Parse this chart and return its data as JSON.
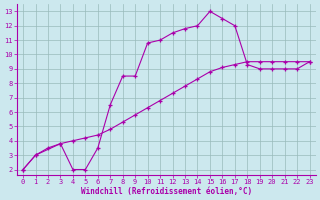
{
  "bg_color": "#cce8ee",
  "line_color": "#aa00aa",
  "xlabel": "Windchill (Refroidissement éolien,°C)",
  "xlim_min": -0.5,
  "xlim_max": 23.5,
  "ylim_min": 1.6,
  "ylim_max": 13.5,
  "xticks": [
    0,
    1,
    2,
    3,
    4,
    5,
    6,
    7,
    8,
    9,
    10,
    11,
    12,
    13,
    14,
    15,
    16,
    17,
    18,
    19,
    20,
    21,
    22,
    23
  ],
  "yticks": [
    2,
    3,
    4,
    5,
    6,
    7,
    8,
    9,
    10,
    11,
    12,
    13
  ],
  "curve1_x": [
    0,
    1,
    3,
    4,
    5,
    6,
    7,
    8,
    9,
    10,
    11,
    12,
    13,
    14,
    15,
    16,
    17,
    18,
    19,
    20,
    21,
    22,
    23
  ],
  "curve1_y": [
    2.0,
    3.0,
    3.8,
    2.0,
    2.0,
    3.5,
    6.5,
    8.5,
    8.5,
    10.8,
    11.0,
    11.5,
    11.8,
    12.0,
    13.0,
    12.5,
    12.0,
    9.3,
    9.0,
    9.0,
    9.0,
    9.0,
    9.5
  ],
  "curve2_x": [
    0,
    1,
    2,
    3,
    4,
    5,
    6,
    7,
    8,
    9,
    10,
    11,
    12,
    13,
    14,
    15,
    16,
    17,
    18,
    19,
    20,
    21,
    22,
    23
  ],
  "curve2_y": [
    2.0,
    3.0,
    3.5,
    3.8,
    4.0,
    4.2,
    4.4,
    4.8,
    5.3,
    5.8,
    6.3,
    6.8,
    7.3,
    7.8,
    8.3,
    8.8,
    9.1,
    9.3,
    9.5,
    9.5,
    9.5,
    9.5,
    9.5,
    9.5
  ],
  "grid_color": "#99bbbb",
  "tick_fontsize": 5,
  "xlabel_fontsize": 5.5,
  "linewidth": 0.8,
  "markersize": 3
}
